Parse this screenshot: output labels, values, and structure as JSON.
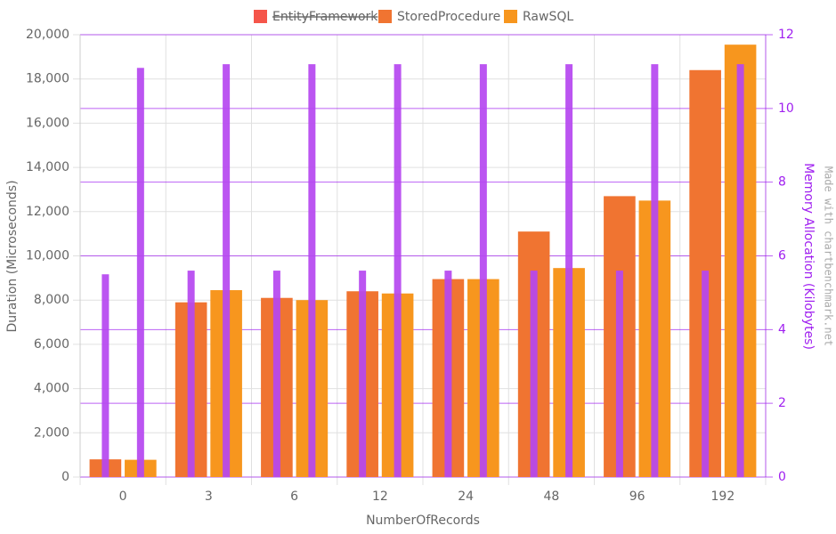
{
  "chart_data": {
    "type": "bar",
    "x_label": "NumberOfRecords",
    "y_label": "Duration (Microseconds)",
    "y2_label": "Memory Allocation (Kilobytes)",
    "watermark": "Made with chartbenchmark.net",
    "categories": [
      "0",
      "3",
      "6",
      "12",
      "24",
      "48",
      "96",
      "192"
    ],
    "series": [
      {
        "name": "EntityFramework",
        "color": "#f44336",
        "hidden": true,
        "values": [
          null,
          null,
          null,
          null,
          null,
          null,
          null,
          null
        ]
      },
      {
        "name": "StoredProcedure",
        "color": "#f07431",
        "values": [
          800,
          7900,
          8100,
          8400,
          8950,
          11100,
          12700,
          18400
        ],
        "memory_values": [
          5.5,
          5.6,
          5.6,
          5.6,
          5.6,
          5.6,
          5.6,
          5.6
        ]
      },
      {
        "name": "RawSQL",
        "color": "#f7961e",
        "values": [
          780,
          8450,
          8000,
          8300,
          8950,
          9450,
          12500,
          19550
        ],
        "memory_values": [
          11.1,
          11.2,
          11.2,
          11.2,
          11.2,
          11.2,
          11.2,
          11.2
        ]
      }
    ],
    "memory_color": "#b547f0",
    "ylim": [
      0,
      20000
    ],
    "yticks": [
      0,
      {
        "value": 2000,
        "label": "2,000"
      },
      {
        "value": 4000,
        "label": "4,000"
      },
      {
        "value": 6000,
        "label": "6,000"
      },
      {
        "value": 8000,
        "label": "8,000"
      },
      {
        "value": 10000,
        "label": "10,000"
      },
      {
        "value": 12000,
        "label": "12,000"
      },
      {
        "value": 14000,
        "label": "14,000"
      },
      {
        "value": 16000,
        "label": "16,000"
      },
      {
        "value": 18000,
        "label": "18,000"
      },
      {
        "value": 20000,
        "label": "20,000"
      }
    ],
    "y2lim": [
      0,
      12
    ],
    "y2ticks": [
      0,
      2,
      4,
      6,
      8,
      10,
      12
    ],
    "y2_color": "#a020f0",
    "grid": true
  }
}
